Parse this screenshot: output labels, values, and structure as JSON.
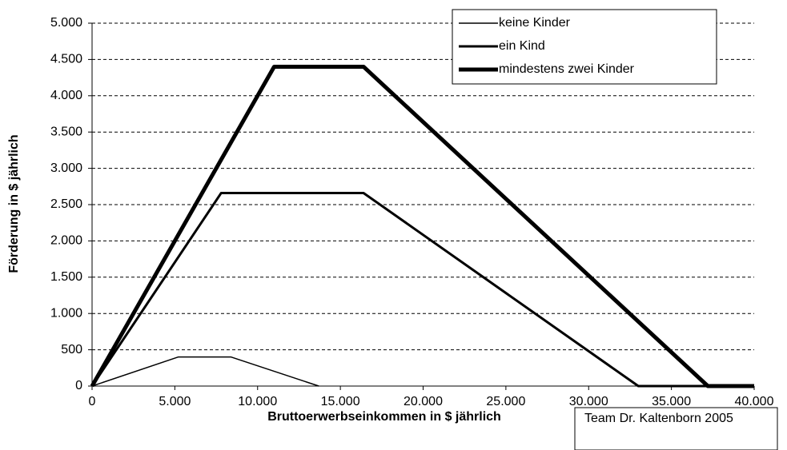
{
  "chart_data": {
    "type": "line",
    "xlabel": "Bruttoerwerbseinkommen in $ jährlich",
    "ylabel": "Förderung in $ jährlich",
    "annotation": "Team Dr. Kaltenborn 2005",
    "xlim": [
      0,
      40000
    ],
    "xticks": [
      0,
      {
        "value": 5000,
        "label": "5.000"
      },
      {
        "value": 10000,
        "label": "10.000"
      },
      {
        "value": 15000,
        "label": "15.000"
      },
      {
        "value": 20000,
        "label": "20.000"
      },
      {
        "value": 25000,
        "label": "25.000"
      },
      {
        "value": 30000,
        "label": "30.000"
      },
      {
        "value": 35000,
        "label": "35.000"
      },
      {
        "value": 40000,
        "label": "40.000"
      }
    ],
    "ylim": [
      0,
      5000
    ],
    "yticks": [
      0,
      500,
      {
        "value": 1000,
        "label": "1.000"
      },
      {
        "value": 1500,
        "label": "1.500"
      },
      {
        "value": 2000,
        "label": "2.000"
      },
      {
        "value": 2500,
        "label": "2.500"
      },
      {
        "value": 3000,
        "label": "3.000"
      },
      {
        "value": 3500,
        "label": "3.500"
      },
      {
        "value": 4000,
        "label": "4.000"
      },
      {
        "value": 4500,
        "label": "4.500"
      },
      {
        "value": 5000,
        "label": "5.000"
      }
    ],
    "grid": true,
    "legend": "top-right",
    "series": [
      {
        "name": "keine Kinder",
        "color": "#000000",
        "line_width": 1.5,
        "x": [
          0,
          5200,
          8400,
          13700
        ],
        "values": [
          0,
          400,
          400,
          0
        ]
      },
      {
        "name": "ein Kind",
        "color": "#000000",
        "line_width": 3,
        "x": [
          0,
          7800,
          16400,
          33000,
          40000
        ],
        "values": [
          0,
          2660,
          2660,
          0,
          0
        ]
      },
      {
        "name": "mindestens zwei Kinder",
        "color": "#000000",
        "line_width": 5,
        "x": [
          0,
          11000,
          16400,
          37200,
          40000
        ],
        "values": [
          0,
          4400,
          4400,
          0,
          0
        ]
      }
    ]
  }
}
